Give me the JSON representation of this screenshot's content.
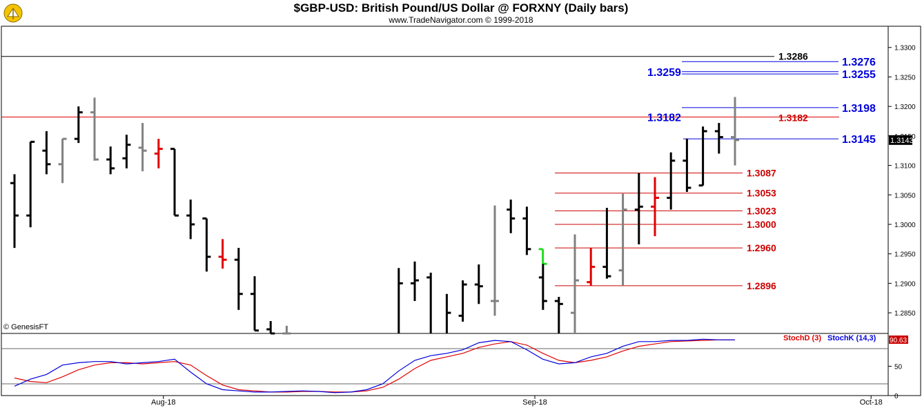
{
  "title": "$GBP-USD:  British Pound/US Dollar @ FORXNY  (Daily bars)",
  "subtitle": "www.TradeNavigator.com © 1999-2018",
  "copyright": "© GenesisFT",
  "colors": {
    "black": "#000000",
    "gray": "#808080",
    "red": "#e00000",
    "green": "#22dd22",
    "blue": "#0000dd",
    "darkred": "#cc0000"
  },
  "chart_data": {
    "type": "ohlc",
    "ylim": [
      1.2815,
      1.3336
    ],
    "ytick_labels": [
      "1.2850",
      "1.2900",
      "1.2950",
      "1.3000",
      "1.3050",
      "1.3100",
      "1.3150",
      "1.3200",
      "1.3250",
      "1.3300"
    ],
    "ytick_values": [
      1.285,
      1.29,
      1.295,
      1.3,
      1.305,
      1.31,
      1.315,
      1.32,
      1.325,
      1.33
    ],
    "x_labels": [
      {
        "label": "Aug-18",
        "index": 9.3
      },
      {
        "label": "Sep-18",
        "index": 32.5
      },
      {
        "label": "Oct-18",
        "index": 53.5
      }
    ],
    "last_price": "1.3143",
    "last_price_value": 1.3143,
    "bars": [
      {
        "i": 0,
        "o": 1.307,
        "h": 1.3085,
        "l": 1.296,
        "c": 1.3015,
        "color": "black"
      },
      {
        "i": 1,
        "o": 1.3015,
        "h": 1.314,
        "l": 1.2995,
        "c": 1.314,
        "color": "black"
      },
      {
        "i": 2,
        "o": 1.3125,
        "h": 1.3158,
        "l": 1.3085,
        "c": 1.3102,
        "color": "black"
      },
      {
        "i": 3,
        "o": 1.3102,
        "h": 1.3145,
        "l": 1.307,
        "c": 1.3145,
        "color": "gray"
      },
      {
        "i": 4,
        "o": 1.3145,
        "h": 1.32,
        "l": 1.3138,
        "c": 1.319,
        "color": "black"
      },
      {
        "i": 5,
        "o": 1.319,
        "h": 1.3215,
        "l": 1.3108,
        "c": 1.311,
        "color": "gray"
      },
      {
        "i": 6,
        "o": 1.311,
        "h": 1.3132,
        "l": 1.3085,
        "c": 1.3095,
        "color": "black"
      },
      {
        "i": 7,
        "o": 1.3112,
        "h": 1.3152,
        "l": 1.3095,
        "c": 1.3135,
        "color": "black"
      },
      {
        "i": 8,
        "o": 1.313,
        "h": 1.3172,
        "l": 1.309,
        "c": 1.3125,
        "color": "gray"
      },
      {
        "i": 9,
        "o": 1.312,
        "h": 1.3145,
        "l": 1.3095,
        "c": 1.3128,
        "color": "red"
      },
      {
        "i": 10,
        "o": 1.3128,
        "h": 1.3128,
        "l": 1.3015,
        "c": 1.3015,
        "color": "black"
      },
      {
        "i": 11,
        "o": 1.3015,
        "h": 1.3042,
        "l": 1.2975,
        "c": 1.3,
        "color": "black"
      },
      {
        "i": 12,
        "o": 1.301,
        "h": 1.301,
        "l": 1.292,
        "c": 1.2945,
        "color": "black"
      },
      {
        "i": 13,
        "o": 1.2945,
        "h": 1.2975,
        "l": 1.2925,
        "c": 1.294,
        "color": "red"
      },
      {
        "i": 14,
        "o": 1.294,
        "h": 1.296,
        "l": 1.2855,
        "c": 1.2882,
        "color": "black"
      },
      {
        "i": 15,
        "o": 1.2882,
        "h": 1.2912,
        "l": 1.282,
        "c": 1.282,
        "color": "black"
      },
      {
        "i": 16,
        "o": 1.2822,
        "h": 1.2836,
        "l": 1.281,
        "c": 1.2815,
        "color": "black"
      },
      {
        "i": 17,
        "o": 1.2815,
        "h": 1.2828,
        "l": 1.281,
        "c": 1.2815,
        "color": "gray"
      },
      {
        "i": 24,
        "o": 1.281,
        "h": 1.2926,
        "l": 1.281,
        "c": 1.29,
        "color": "black"
      },
      {
        "i": 25,
        "o": 1.29,
        "h": 1.2937,
        "l": 1.287,
        "c": 1.2905,
        "color": "black"
      },
      {
        "i": 26,
        "o": 1.291,
        "h": 1.2918,
        "l": 1.281,
        "c": 1.281,
        "color": "black"
      },
      {
        "i": 27,
        "o": 1.2812,
        "h": 1.2882,
        "l": 1.2812,
        "c": 1.285,
        "color": "black"
      },
      {
        "i": 28,
        "o": 1.2845,
        "h": 1.2905,
        "l": 1.2835,
        "c": 1.2898,
        "color": "black"
      },
      {
        "i": 29,
        "o": 1.2898,
        "h": 1.2932,
        "l": 1.2865,
        "c": 1.2895,
        "color": "black"
      },
      {
        "i": 30,
        "o": 1.287,
        "h": 1.3032,
        "l": 1.2845,
        "c": 1.287,
        "color": "gray"
      },
      {
        "i": 31,
        "o": 1.3025,
        "h": 1.3042,
        "l": 1.2985,
        "c": 1.301,
        "color": "black"
      },
      {
        "i": 32,
        "o": 1.301,
        "h": 1.303,
        "l": 1.2948,
        "c": 1.2958,
        "color": "black"
      },
      {
        "i": 33,
        "o": 1.2958,
        "h": 1.2958,
        "l": 1.2933,
        "c": 1.2933,
        "color": "green"
      },
      {
        "i": 33.01,
        "o": 1.291,
        "h": 1.2933,
        "l": 1.2855,
        "c": 1.287,
        "color": "black"
      },
      {
        "i": 34,
        "o": 1.287,
        "h": 1.2877,
        "l": 1.2815,
        "c": 1.2865,
        "color": "black"
      },
      {
        "i": 35,
        "o": 1.285,
        "h": 1.2983,
        "l": 1.2815,
        "c": 1.2905,
        "color": "gray"
      },
      {
        "i": 36,
        "o": 1.2902,
        "h": 1.296,
        "l": 1.2896,
        "c": 1.2928,
        "color": "red"
      },
      {
        "i": 37,
        "o": 1.2928,
        "h": 1.3028,
        "l": 1.2908,
        "c": 1.2912,
        "color": "black"
      },
      {
        "i": 38,
        "o": 1.2922,
        "h": 1.3052,
        "l": 1.2896,
        "c": 1.3025,
        "color": "gray"
      },
      {
        "i": 39,
        "o": 1.3025,
        "h": 1.3087,
        "l": 1.2966,
        "c": 1.303,
        "color": "black"
      },
      {
        "i": 40,
        "o": 1.303,
        "h": 1.308,
        "l": 1.298,
        "c": 1.3045,
        "color": "red"
      },
      {
        "i": 41,
        "o": 1.3045,
        "h": 1.3122,
        "l": 1.3025,
        "c": 1.3108,
        "color": "black"
      },
      {
        "i": 42,
        "o": 1.3108,
        "h": 1.3145,
        "l": 1.3055,
        "c": 1.3062,
        "color": "black"
      },
      {
        "i": 43,
        "o": 1.3066,
        "h": 1.3166,
        "l": 1.3066,
        "c": 1.3158,
        "color": "black"
      },
      {
        "i": 44,
        "o": 1.3158,
        "h": 1.3172,
        "l": 1.312,
        "c": 1.3148,
        "color": "black"
      },
      {
        "i": 45,
        "o": 1.3148,
        "h": 1.3216,
        "l": 1.31,
        "c": 1.3143,
        "color": "gray"
      }
    ],
    "levels": [
      {
        "value": 1.3087,
        "label": "1.3087",
        "color": "red"
      },
      {
        "value": 1.3053,
        "label": "1.3053",
        "color": "red"
      },
      {
        "value": 1.3023,
        "label": "1.3023",
        "color": "red"
      },
      {
        "value": 1.3,
        "label": "1.3000",
        "color": "red"
      },
      {
        "value": 1.296,
        "label": "1.2960",
        "color": "red"
      },
      {
        "value": 1.2896,
        "label": "1.2896",
        "color": "red"
      }
    ],
    "horizontal_line": {
      "value": 1.3182,
      "color": "red"
    },
    "horizontal_line_labels": [
      {
        "label": "1.3182",
        "color": "blue",
        "side": "left"
      },
      {
        "label": "1.3182",
        "color": "red",
        "side": "right"
      }
    ],
    "top_line": {
      "value": 1.3286,
      "label": "1.3286"
    },
    "blue_levels": [
      {
        "value": 1.3276,
        "label": "1.3276"
      },
      {
        "value": 1.3255,
        "label": "1.3255"
      },
      {
        "value": 1.3198,
        "label": "1.3198"
      },
      {
        "value": 1.3145,
        "label": "1.3145"
      }
    ],
    "blue_left_label": {
      "value": 1.3259,
      "label": "1.3259"
    },
    "stochastic": {
      "ylim": [
        0,
        100
      ],
      "ytick_labels": [
        "0",
        "50"
      ],
      "ytick_values": [
        0,
        50
      ],
      "ref_lines": [
        20,
        80
      ],
      "legend": [
        {
          "name": "StochD (3)",
          "color": "red"
        },
        {
          "name": "StochK (14,3)",
          "color": "blue"
        }
      ],
      "last_value": "90.63",
      "k": [
        16,
        28,
        36,
        52,
        56,
        58,
        58,
        54,
        56,
        58,
        62,
        40,
        20,
        10,
        8,
        6,
        6,
        7,
        8,
        7,
        5,
        6,
        10,
        20,
        42,
        60,
        68,
        72,
        78,
        90,
        94,
        92,
        78,
        62,
        54,
        56,
        66,
        72,
        84,
        92,
        92,
        94,
        94,
        96,
        95,
        95
      ],
      "d": [
        30,
        24,
        22,
        32,
        44,
        52,
        56,
        56,
        54,
        56,
        58,
        52,
        34,
        18,
        10,
        8,
        6,
        6,
        7,
        7,
        6,
        6,
        8,
        14,
        28,
        46,
        60,
        66,
        72,
        82,
        88,
        92,
        86,
        72,
        60,
        56,
        60,
        66,
        76,
        84,
        88,
        92,
        93,
        94,
        95,
        95
      ]
    }
  }
}
